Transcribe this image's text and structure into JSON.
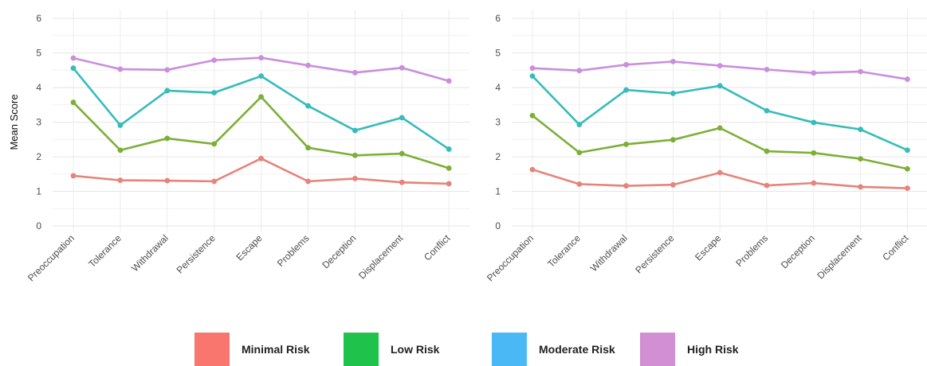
{
  "chart_data": [
    {
      "type": "line",
      "ylabel": "Mean Score",
      "ylim": [
        0,
        6
      ],
      "yticks": [
        0,
        1,
        2,
        3,
        4,
        5,
        6
      ],
      "grid": true,
      "categories": [
        "Preoccupation",
        "Tolerance",
        "Withdrawal",
        "Persistence",
        "Escape",
        "Problems",
        "Deception",
        "Displacement",
        "Conflict"
      ],
      "series": [
        {
          "name": "Minimal Risk",
          "values": [
            1.45,
            1.32,
            1.31,
            1.29,
            1.95,
            1.29,
            1.37,
            1.26,
            1.22
          ]
        },
        {
          "name": "Low Risk",
          "values": [
            3.57,
            2.19,
            2.53,
            2.37,
            3.73,
            2.26,
            2.04,
            2.09,
            1.67
          ]
        },
        {
          "name": "Moderate Risk",
          "values": [
            4.56,
            2.91,
            3.91,
            3.85,
            4.33,
            3.47,
            2.76,
            3.13,
            2.22
          ]
        },
        {
          "name": "High Risk",
          "values": [
            4.85,
            4.53,
            4.51,
            4.79,
            4.86,
            4.64,
            4.43,
            4.57,
            4.19
          ]
        }
      ]
    },
    {
      "type": "line",
      "ylabel": "",
      "ylim": [
        0,
        6
      ],
      "yticks": [
        0,
        1,
        2,
        3,
        4,
        5,
        6
      ],
      "grid": true,
      "categories": [
        "Preoccupation",
        "Tolerance",
        "Withdrawal",
        "Persistence",
        "Escape",
        "Problems",
        "Deception",
        "Displacement",
        "Conflict"
      ],
      "series": [
        {
          "name": "Minimal Risk",
          "values": [
            1.63,
            1.21,
            1.16,
            1.19,
            1.54,
            1.17,
            1.24,
            1.13,
            1.09
          ]
        },
        {
          "name": "Low Risk",
          "values": [
            3.19,
            2.12,
            2.36,
            2.49,
            2.83,
            2.16,
            2.11,
            1.94,
            1.65
          ]
        },
        {
          "name": "Moderate Risk",
          "values": [
            4.33,
            2.93,
            3.93,
            3.83,
            4.05,
            3.33,
            2.99,
            2.79,
            2.19
          ]
        },
        {
          "name": "High Risk",
          "values": [
            4.56,
            4.49,
            4.66,
            4.75,
            4.63,
            4.52,
            4.42,
            4.46,
            4.24
          ]
        }
      ]
    }
  ],
  "legend": [
    {
      "label": "Minimal Risk",
      "color": "#f8766d"
    },
    {
      "label": "Low Risk",
      "color": "#1fc24a"
    },
    {
      "label": "Moderate Risk",
      "color": "#4ab8f5"
    },
    {
      "label": "High Risk",
      "color": "#d28fd3"
    }
  ],
  "line_colors": [
    "#e5847b",
    "#7daf37",
    "#36bcb9",
    "#c98fdd"
  ]
}
